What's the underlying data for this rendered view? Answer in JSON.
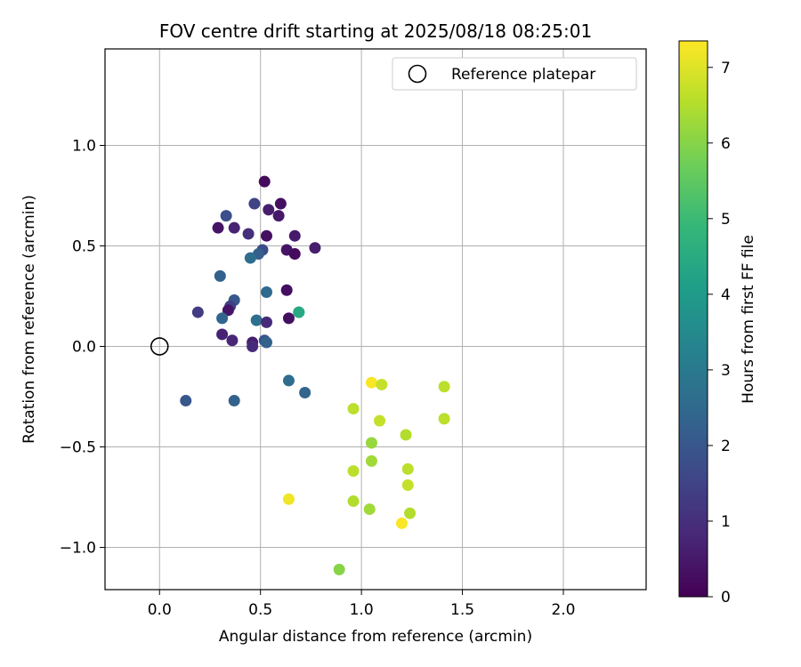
{
  "chart_data": {
    "type": "scatter",
    "title": "FOV centre drift starting at 2025/08/18 08:25:01",
    "xlabel": "Angular distance from reference (arcmin)",
    "ylabel": "Rotation from reference (arcmin)",
    "xlim": [
      -0.27,
      2.41
    ],
    "ylim": [
      -1.21,
      1.48
    ],
    "xticks": [
      0.0,
      0.5,
      1.0,
      1.5,
      2.0
    ],
    "xtick_labels": [
      "0.0",
      "0.5",
      "1.0",
      "1.5",
      "2.0"
    ],
    "yticks": [
      -1.0,
      -0.5,
      0.0,
      0.5,
      1.0
    ],
    "ytick_labels": [
      "−1.0",
      "−0.5",
      "0.0",
      "0.5",
      "1.0"
    ],
    "grid": true,
    "legend": {
      "position": "top-right",
      "entries": [
        {
          "label": "Reference platepar",
          "marker": "open-circle"
        }
      ]
    },
    "reference_point": {
      "x": 0.0,
      "y": 0.0
    },
    "colorbar": {
      "label": "Hours from first FF file",
      "range": [
        0,
        7.35
      ],
      "ticks": [
        0,
        1,
        2,
        3,
        4,
        5,
        6,
        7
      ],
      "colormap": "viridis"
    },
    "points": [
      {
        "x": 0.52,
        "y": 0.82,
        "t": 0.2
      },
      {
        "x": 0.6,
        "y": 0.71,
        "t": 0.3
      },
      {
        "x": 0.54,
        "y": 0.68,
        "t": 0.6
      },
      {
        "x": 0.59,
        "y": 0.65,
        "t": 0.5
      },
      {
        "x": 0.47,
        "y": 0.71,
        "t": 1.5
      },
      {
        "x": 0.33,
        "y": 0.65,
        "t": 1.8
      },
      {
        "x": 0.29,
        "y": 0.59,
        "t": 0.4
      },
      {
        "x": 0.37,
        "y": 0.59,
        "t": 0.7
      },
      {
        "x": 0.44,
        "y": 0.56,
        "t": 1.0
      },
      {
        "x": 0.53,
        "y": 0.55,
        "t": 0.3
      },
      {
        "x": 0.67,
        "y": 0.55,
        "t": 0.5
      },
      {
        "x": 0.77,
        "y": 0.49,
        "t": 0.6
      },
      {
        "x": 0.63,
        "y": 0.48,
        "t": 0.4
      },
      {
        "x": 0.67,
        "y": 0.46,
        "t": 0.2
      },
      {
        "x": 0.51,
        "y": 0.48,
        "t": 1.7
      },
      {
        "x": 0.49,
        "y": 0.46,
        "t": 2.2
      },
      {
        "x": 0.45,
        "y": 0.44,
        "t": 2.6
      },
      {
        "x": 0.3,
        "y": 0.35,
        "t": 2.3
      },
      {
        "x": 0.63,
        "y": 0.28,
        "t": 0.3
      },
      {
        "x": 0.53,
        "y": 0.27,
        "t": 2.5
      },
      {
        "x": 0.37,
        "y": 0.23,
        "t": 2.0
      },
      {
        "x": 0.35,
        "y": 0.2,
        "t": 1.4
      },
      {
        "x": 0.34,
        "y": 0.18,
        "t": 0.4
      },
      {
        "x": 0.19,
        "y": 0.17,
        "t": 1.3
      },
      {
        "x": 0.31,
        "y": 0.14,
        "t": 2.4
      },
      {
        "x": 0.48,
        "y": 0.13,
        "t": 2.7
      },
      {
        "x": 0.53,
        "y": 0.12,
        "t": 0.9
      },
      {
        "x": 0.64,
        "y": 0.14,
        "t": 0.3
      },
      {
        "x": 0.69,
        "y": 0.17,
        "t": 4.3
      },
      {
        "x": 0.69,
        "y": 0.17,
        "t": 4.4
      },
      {
        "x": 0.31,
        "y": 0.06,
        "t": 0.7
      },
      {
        "x": 0.36,
        "y": 0.03,
        "t": 0.8
      },
      {
        "x": 0.46,
        "y": 0.02,
        "t": 0.6
      },
      {
        "x": 0.46,
        "y": 0.0,
        "t": 0.9
      },
      {
        "x": 0.52,
        "y": 0.03,
        "t": 1.9
      },
      {
        "x": 0.53,
        "y": 0.02,
        "t": 2.3
      },
      {
        "x": 0.13,
        "y": -0.27,
        "t": 2.0
      },
      {
        "x": 0.37,
        "y": -0.27,
        "t": 2.3
      },
      {
        "x": 0.64,
        "y": -0.17,
        "t": 2.6
      },
      {
        "x": 0.72,
        "y": -0.23,
        "t": 2.4
      },
      {
        "x": 0.64,
        "y": -0.76,
        "t": 7.2
      },
      {
        "x": 0.89,
        "y": -1.11,
        "t": 6.0
      },
      {
        "x": 0.96,
        "y": -0.31,
        "t": 6.6
      },
      {
        "x": 0.96,
        "y": -0.62,
        "t": 6.6
      },
      {
        "x": 0.96,
        "y": -0.77,
        "t": 6.5
      },
      {
        "x": 1.05,
        "y": -0.18,
        "t": 7.3
      },
      {
        "x": 1.1,
        "y": -0.19,
        "t": 6.7
      },
      {
        "x": 1.09,
        "y": -0.37,
        "t": 6.7
      },
      {
        "x": 1.05,
        "y": -0.48,
        "t": 6.2
      },
      {
        "x": 1.05,
        "y": -0.57,
        "t": 6.3
      },
      {
        "x": 1.04,
        "y": -0.81,
        "t": 6.3
      },
      {
        "x": 1.2,
        "y": -0.88,
        "t": 7.3
      },
      {
        "x": 1.22,
        "y": -0.44,
        "t": 6.5
      },
      {
        "x": 1.23,
        "y": -0.61,
        "t": 6.6
      },
      {
        "x": 1.23,
        "y": -0.69,
        "t": 6.7
      },
      {
        "x": 1.24,
        "y": -0.83,
        "t": 6.5
      },
      {
        "x": 1.41,
        "y": -0.2,
        "t": 6.6
      },
      {
        "x": 1.41,
        "y": -0.36,
        "t": 6.6
      }
    ]
  }
}
